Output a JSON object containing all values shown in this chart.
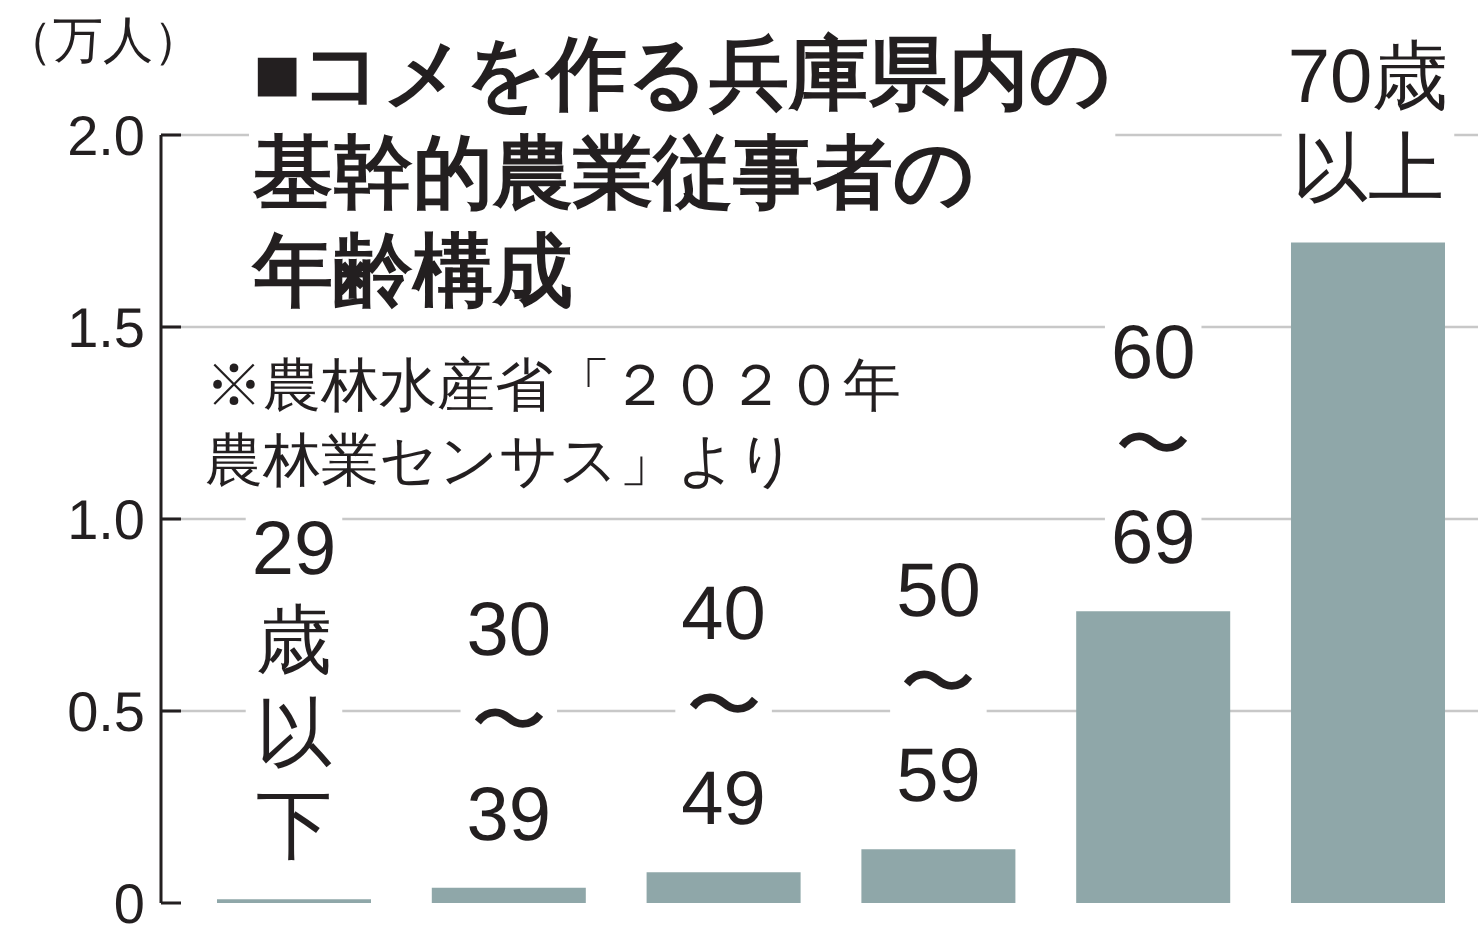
{
  "chart_data": {
    "type": "bar",
    "title": "■コメを作る兵庫県内の基幹的農業従事者の年齢構成",
    "ylabel": "（万人）",
    "annotations": [
      "※農林水産省「２０２０年農林業センサス」より"
    ],
    "categories": [
      "29歳以下",
      "30〜39",
      "40〜49",
      "50〜59",
      "60〜69",
      "70歳以上"
    ],
    "values": [
      0.01,
      0.04,
      0.08,
      0.14,
      0.76,
      1.72
    ],
    "color": "#8fa7a9",
    "ylim": [
      0,
      2
    ],
    "yticks": [
      0,
      0.5,
      {
        "value": 1,
        "label": "1.0"
      },
      1.5,
      {
        "value": 2,
        "label": "2.0"
      }
    ],
    "grid": "y"
  }
}
